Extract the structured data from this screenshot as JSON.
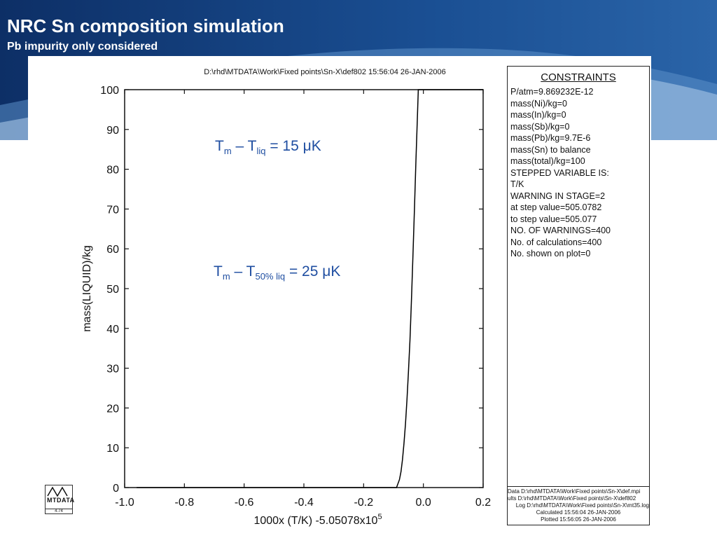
{
  "slide": {
    "title": "NRC Sn composition simulation",
    "subtitle": "Pb impurity only considered"
  },
  "colors": {
    "header_dark": "#0d2f66",
    "header_mid": "#1a4f93",
    "header_light": "#5b8fc8",
    "annotation": "#1f4ea1",
    "curve": "#000000"
  },
  "chart_data": {
    "type": "line",
    "header": "D:\\rhd\\MTDATA\\Work\\Fixed points\\Sn-X\\def802  15:56:04 26-JAN-2006",
    "xlabel": "1000x (T/K) -5.05078x10",
    "xlabel_exponent": "5",
    "ylabel": "mass(LIQUID)/kg",
    "xlim": [
      -1.0,
      0.2
    ],
    "ylim": [
      0,
      100
    ],
    "grid": false,
    "x_ticks": [
      "-1.0",
      "-0.8",
      "-0.6",
      "-0.4",
      "-0.2",
      "0.0",
      "0.2"
    ],
    "y_ticks": [
      "100",
      "90",
      "80",
      "70",
      "60",
      "50",
      "40",
      "30",
      "20",
      "10",
      "0"
    ],
    "series": [
      {
        "x": [
          -0.96,
          -0.09,
          -0.08,
          -0.075,
          -0.07,
          -0.065,
          -0.06,
          -0.055,
          -0.05,
          -0.045,
          -0.04,
          -0.035,
          -0.03,
          -0.025,
          -0.02,
          -0.017,
          0.2
        ],
        "y": [
          0,
          0,
          2,
          4,
          7,
          11,
          16,
          22,
          29,
          37,
          47,
          58,
          70,
          82,
          93,
          100,
          100
        ]
      }
    ],
    "annotations": [
      {
        "base": "T",
        "sub1": "m",
        "mid": " – T",
        "sub2": "liq",
        "tail": " = 15 μK"
      },
      {
        "base": "T",
        "sub1": "m",
        "mid": " – T",
        "sub2": "50% liq",
        "tail": " = 25 μK"
      }
    ]
  },
  "constraints": {
    "title": "CONSTRAINTS",
    "lines": [
      "P/atm=9.869232E-12",
      "mass(Ni)/kg=0",
      "mass(In)/kg=0",
      "mass(Sb)/kg=0",
      "mass(Pb)/kg=9.7E-6",
      "mass(Sn) to balance",
      "mass(total)/kg=100",
      "STEPPED VARIABLE IS:",
      "T/K",
      "WARNING IN STAGE=2",
      "at step value=505.0782",
      "to step value=505.077",
      "NO. OF WARNINGS=400",
      "No. of calculations=400",
      "No. shown on plot=0"
    ],
    "footer": [
      "Data D:\\rhd\\MTDATA\\Work\\Fixed points\\Sn-X\\def.mpi",
      "ults D:\\rhd\\MTDATA\\Work\\Fixed points\\Sn-X\\def802",
      "Log D:\\rhd\\MTDATA\\Work\\Fixed points\\Sn-X\\mt35.log",
      "Calculated 15:56:04 26-JAN-2006",
      "Plotted  15:56:05 26-JAN-2006"
    ]
  },
  "logo": {
    "text": "MTDATA",
    "version": "4.74"
  }
}
